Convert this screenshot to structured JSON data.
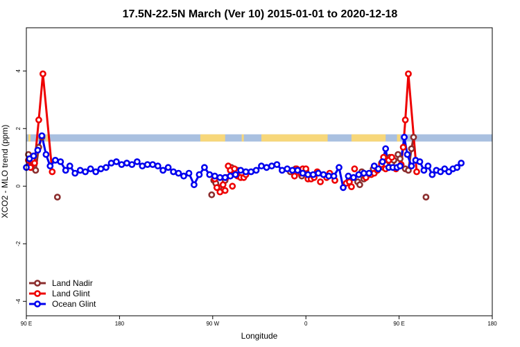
{
  "chart_data": {
    "type": "line",
    "title": "17.5N-22.5N March (Ver 10)   2015-01-01 to 2020-12-18",
    "xlabel": "Longitude",
    "ylabel": "XCO2 - MLO trend (ppm)",
    "xlim": [
      -180,
      270
    ],
    "ylim": [
      -4.5,
      5.5
    ],
    "x_ticks": [
      {
        "value": -180,
        "label": "90 E"
      },
      {
        "value": -90,
        "label": "180"
      },
      {
        "value": 0,
        "label": "90 W"
      },
      {
        "value": 90,
        "label": "0"
      },
      {
        "value": 180,
        "label": "90 E"
      },
      {
        "value": 270,
        "label": "180"
      }
    ],
    "y_ticks": [
      {
        "value": -4,
        "label": "-4"
      },
      {
        "value": -2,
        "label": "-2"
      },
      {
        "value": 0,
        "label": "0"
      },
      {
        "value": 2,
        "label": "2"
      },
      {
        "value": 4,
        "label": "4"
      }
    ],
    "grid": false,
    "legend_position": "bottom-left",
    "colors": {
      "land_nadir": "#8b2e2e",
      "land_glint": "#ee0000",
      "ocean_glint": "#0000ee",
      "surface_ocean": "#a9c0e0",
      "surface_land": "#f7d77a"
    },
    "surface_band": {
      "y_range": [
        1.55,
        1.8
      ],
      "land_segments": [
        [
          -178,
          -176
        ],
        [
          -161,
          -159
        ],
        [
          -12,
          12
        ],
        [
          28,
          30
        ],
        [
          47,
          111
        ],
        [
          134,
          167
        ],
        [
          178,
          181
        ]
      ]
    },
    "series": [
      {
        "name": "Land Nadir",
        "key": "land_nadir",
        "points": [
          [
            -178,
            1.1
          ],
          [
            -175,
            0.65
          ],
          [
            -171,
            0.55
          ],
          [
            -168,
            1.35
          ],
          [
            -165,
            1.7
          ],
          [
            -150,
            -0.38
          ],
          [
            -1,
            -0.3
          ],
          [
            1,
            0.2
          ],
          [
            3,
            0.1
          ],
          [
            6,
            -0.05
          ],
          [
            12,
            0.2
          ],
          [
            18,
            0.65
          ],
          [
            21,
            0.5
          ],
          [
            24,
            0.55
          ],
          [
            75,
            0.5
          ],
          [
            80,
            0.6
          ],
          [
            84,
            0.55
          ],
          [
            86,
            0.35
          ],
          [
            88,
            0.5
          ],
          [
            90,
            0.55
          ],
          [
            140,
            0.15
          ],
          [
            142,
            0.05
          ],
          [
            144,
            0.5
          ],
          [
            146,
            0.25
          ],
          [
            148,
            0.3
          ],
          [
            155,
            0.6
          ],
          [
            163,
            0.8
          ],
          [
            165,
            0.65
          ],
          [
            167,
            0.75
          ],
          [
            171,
            1.0
          ],
          [
            173,
            0.8
          ],
          [
            175,
            0.9
          ],
          [
            179,
            1.1
          ],
          [
            181,
            0.95
          ],
          [
            186,
            0.6
          ],
          [
            189,
            0.55
          ],
          [
            192,
            1.3
          ],
          [
            194,
            1.7
          ],
          [
            206,
            -0.38
          ]
        ],
        "segments": [
          [
            -178,
            -175,
            -171,
            -168,
            -165
          ],
          [
            186,
            189,
            192,
            194
          ]
        ]
      },
      {
        "name": "Land Glint",
        "key": "land_glint",
        "points": [
          [
            -178,
            0.9
          ],
          [
            -176,
            0.65
          ],
          [
            -172,
            0.8
          ],
          [
            -168,
            2.3
          ],
          [
            -164,
            3.9
          ],
          [
            -155,
            0.5
          ],
          [
            2,
            0.25
          ],
          [
            4,
            -0.05
          ],
          [
            7,
            -0.2
          ],
          [
            10,
            0.05
          ],
          [
            12,
            -0.15
          ],
          [
            13,
            0.3
          ],
          [
            15,
            0.7
          ],
          [
            17,
            0.55
          ],
          [
            19,
            0.0
          ],
          [
            21,
            0.6
          ],
          [
            24,
            0.35
          ],
          [
            27,
            0.3
          ],
          [
            30,
            0.3
          ],
          [
            32,
            0.4
          ],
          [
            79,
            0.35
          ],
          [
            81,
            0.6
          ],
          [
            83,
            0.55
          ],
          [
            85,
            0.45
          ],
          [
            87,
            0.6
          ],
          [
            90,
            0.6
          ],
          [
            92,
            0.25
          ],
          [
            95,
            0.25
          ],
          [
            98,
            0.3
          ],
          [
            101,
            0.5
          ],
          [
            104,
            0.15
          ],
          [
            107,
            0.4
          ],
          [
            110,
            0.3
          ],
          [
            113,
            0.45
          ],
          [
            118,
            0.2
          ],
          [
            129,
            0.1
          ],
          [
            132,
            0.15
          ],
          [
            134,
            -0.02
          ],
          [
            137,
            0.6
          ],
          [
            148,
            0.3
          ],
          [
            153,
            0.4
          ],
          [
            156,
            0.45
          ],
          [
            159,
            0.55
          ],
          [
            163,
            0.75
          ],
          [
            165,
            1.0
          ],
          [
            167,
            0.6
          ],
          [
            170,
            0.9
          ],
          [
            173,
            1.0
          ],
          [
            177,
            0.6
          ],
          [
            182,
            0.75
          ],
          [
            184,
            1.35
          ],
          [
            186,
            2.3
          ],
          [
            189,
            3.9
          ],
          [
            197,
            0.5
          ]
        ],
        "segments": [
          [
            -178,
            -176,
            -172,
            -168,
            -164,
            -155
          ],
          [
            182,
            184,
            186,
            189,
            197
          ]
        ]
      },
      {
        "name": "Ocean Glint",
        "key": "ocean_glint",
        "points": [
          [
            -180,
            0.65
          ],
          [
            -177,
            0.95
          ],
          [
            -173,
            1.05
          ],
          [
            -169,
            1.25
          ],
          [
            -165,
            1.75
          ],
          [
            -161,
            1.1
          ],
          [
            -157,
            0.7
          ],
          [
            -152,
            0.9
          ],
          [
            -147,
            0.85
          ],
          [
            -142,
            0.55
          ],
          [
            -138,
            0.7
          ],
          [
            -133,
            0.45
          ],
          [
            -128,
            0.55
          ],
          [
            -123,
            0.5
          ],
          [
            -118,
            0.6
          ],
          [
            -113,
            0.5
          ],
          [
            -108,
            0.6
          ],
          [
            -103,
            0.65
          ],
          [
            -98,
            0.8
          ],
          [
            -93,
            0.85
          ],
          [
            -88,
            0.75
          ],
          [
            -83,
            0.8
          ],
          [
            -78,
            0.75
          ],
          [
            -73,
            0.85
          ],
          [
            -68,
            0.7
          ],
          [
            -63,
            0.75
          ],
          [
            -58,
            0.75
          ],
          [
            -53,
            0.7
          ],
          [
            -48,
            0.55
          ],
          [
            -43,
            0.65
          ],
          [
            -38,
            0.5
          ],
          [
            -33,
            0.45
          ],
          [
            -28,
            0.35
          ],
          [
            -23,
            0.45
          ],
          [
            -18,
            0.05
          ],
          [
            -13,
            0.4
          ],
          [
            -8,
            0.65
          ],
          [
            -3,
            0.4
          ],
          [
            2,
            0.35
          ],
          [
            7,
            0.3
          ],
          [
            12,
            0.3
          ],
          [
            17,
            0.35
          ],
          [
            22,
            0.4
          ],
          [
            27,
            0.55
          ],
          [
            32,
            0.5
          ],
          [
            37,
            0.5
          ],
          [
            42,
            0.55
          ],
          [
            47,
            0.7
          ],
          [
            52,
            0.65
          ],
          [
            57,
            0.7
          ],
          [
            62,
            0.75
          ],
          [
            67,
            0.55
          ],
          [
            72,
            0.6
          ],
          [
            77,
            0.55
          ],
          [
            82,
            0.55
          ],
          [
            87,
            0.45
          ],
          [
            92,
            0.4
          ],
          [
            97,
            0.4
          ],
          [
            102,
            0.45
          ],
          [
            107,
            0.4
          ],
          [
            112,
            0.35
          ],
          [
            117,
            0.35
          ],
          [
            122,
            0.65
          ],
          [
            126,
            -0.05
          ],
          [
            131,
            0.35
          ],
          [
            136,
            0.3
          ],
          [
            141,
            0.4
          ],
          [
            146,
            0.45
          ],
          [
            151,
            0.45
          ],
          [
            156,
            0.7
          ],
          [
            160,
            0.6
          ],
          [
            164,
            0.85
          ],
          [
            167,
            1.3
          ],
          [
            170,
            0.65
          ],
          [
            174,
            0.65
          ],
          [
            178,
            0.65
          ],
          [
            181,
            0.7
          ],
          [
            185,
            1.7
          ],
          [
            188,
            1.1
          ],
          [
            192,
            0.7
          ],
          [
            196,
            0.9
          ],
          [
            200,
            0.85
          ],
          [
            204,
            0.55
          ],
          [
            208,
            0.7
          ],
          [
            212,
            0.4
          ],
          [
            216,
            0.55
          ],
          [
            220,
            0.5
          ],
          [
            224,
            0.6
          ],
          [
            228,
            0.5
          ],
          [
            232,
            0.6
          ],
          [
            236,
            0.65
          ],
          [
            240,
            0.8
          ]
        ],
        "segments": "all"
      }
    ],
    "legend": [
      {
        "label": "Land Nadir",
        "key": "land_nadir"
      },
      {
        "label": "Land Glint",
        "key": "land_glint"
      },
      {
        "label": "Ocean Glint",
        "key": "ocean_glint"
      }
    ]
  }
}
